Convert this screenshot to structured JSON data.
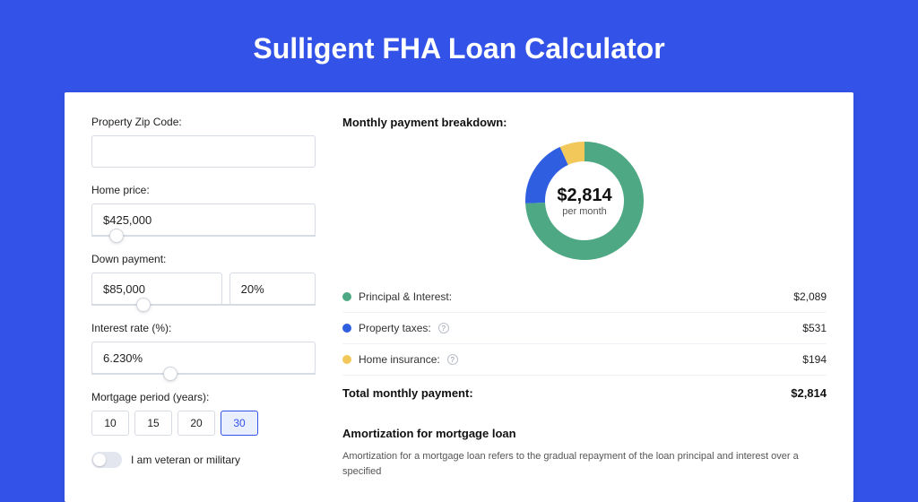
{
  "title": "Sulligent FHA Loan Calculator",
  "form": {
    "zip": {
      "label": "Property Zip Code:",
      "value": ""
    },
    "price": {
      "label": "Home price:",
      "value": "$425,000",
      "slider_pos": 0.08
    },
    "down": {
      "label": "Down payment:",
      "amount": "$85,000",
      "percent": "20%",
      "slider_pos": 0.2
    },
    "rate": {
      "label": "Interest rate (%):",
      "value": "6.230%",
      "slider_pos": 0.32
    },
    "period": {
      "label": "Mortgage period (years):",
      "options": [
        "10",
        "15",
        "20",
        "30"
      ],
      "active_index": 3
    },
    "veteran_label": "I am veteran or military"
  },
  "breakdown": {
    "title": "Monthly payment breakdown:",
    "center_amount": "$2,814",
    "center_sub": "per month",
    "items": [
      {
        "label": "Principal & Interest:",
        "value": "$2,089",
        "color": "#4fa884",
        "percent": 0.742,
        "info": false
      },
      {
        "label": "Property taxes:",
        "value": "$531",
        "color": "#2f5fe0",
        "percent": 0.189,
        "info": true
      },
      {
        "label": "Home insurance:",
        "value": "$194",
        "color": "#f3c85b",
        "percent": 0.069,
        "info": true
      }
    ],
    "total_label": "Total monthly payment:",
    "total_value": "$2,814",
    "donut": {
      "size": 140,
      "radius": 55,
      "stroke": 22
    }
  },
  "amort": {
    "title": "Amortization for mortgage loan",
    "text": "Amortization for a mortgage loan refers to the gradual repayment of the loan principal and interest over a specified"
  },
  "colors": {
    "bg": "#3353e8",
    "card": "#ffffff",
    "border": "#d7dbe3"
  }
}
